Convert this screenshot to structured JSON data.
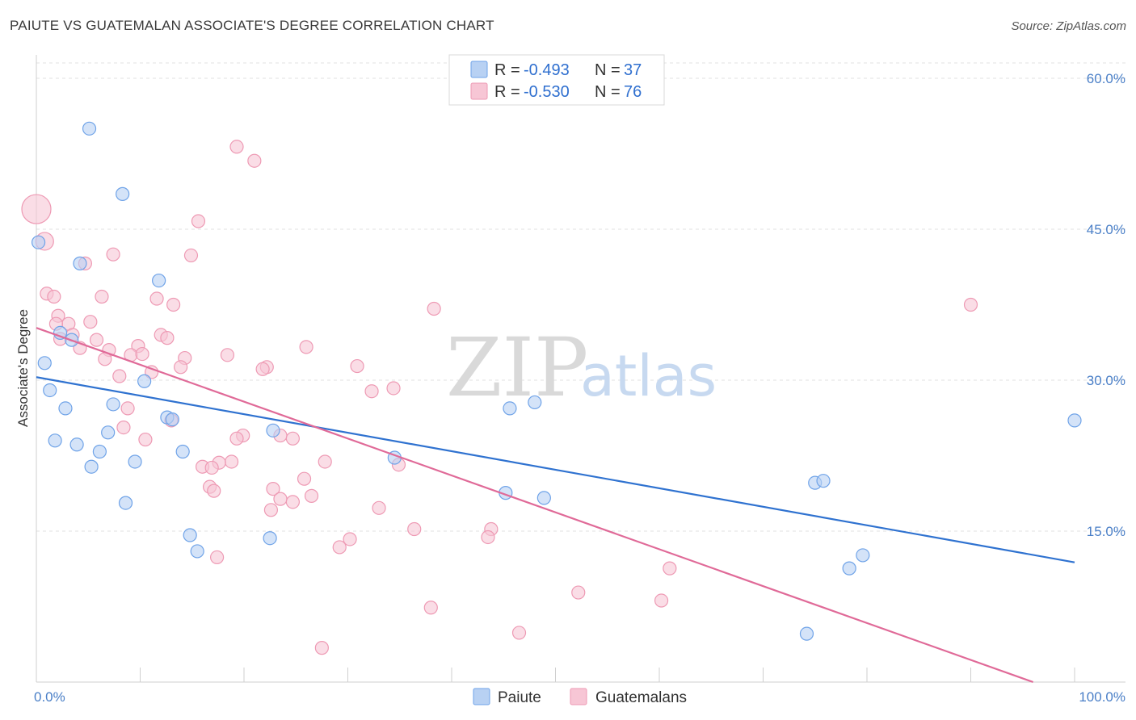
{
  "chart_data": {
    "type": "scatter",
    "title": "PAIUTE VS GUATEMALAN ASSOCIATE'S DEGREE CORRELATION CHART",
    "source": "Source: ZipAtlas.com",
    "xlabel": "",
    "ylabel": "Associate's Degree",
    "xlim": [
      0,
      100
    ],
    "ylim": [
      0,
      60
    ],
    "x_tick_labels": [
      "0.0%",
      "100.0%"
    ],
    "y_ticks": [
      15,
      30,
      45,
      60
    ],
    "y_tick_labels": [
      "15.0%",
      "30.0%",
      "45.0%",
      "60.0%"
    ],
    "grid": true,
    "legend_position": "top-center",
    "watermark": {
      "zip": "ZIP",
      "atlas": "atlas"
    },
    "series": [
      {
        "name": "Paiute",
        "color": "#6fa3e8",
        "fill": "#b8d1f3",
        "line_color": "#2f72d0",
        "r_label": "R =",
        "r_value": "-0.493",
        "n_label": "N =",
        "n_value": "37",
        "trend": [
          [
            0,
            30.3
          ],
          [
            100,
            11.9
          ]
        ],
        "points": [
          [
            5.1,
            55.0
          ],
          [
            8.3,
            48.5
          ],
          [
            0.2,
            43.7
          ],
          [
            4.2,
            41.6
          ],
          [
            11.8,
            39.9
          ],
          [
            2.3,
            34.7
          ],
          [
            3.4,
            34.0
          ],
          [
            0.8,
            31.7
          ],
          [
            1.3,
            29.0
          ],
          [
            10.4,
            29.9
          ],
          [
            2.8,
            27.2
          ],
          [
            7.4,
            27.6
          ],
          [
            12.6,
            26.3
          ],
          [
            6.9,
            24.8
          ],
          [
            13.1,
            26.1
          ],
          [
            22.8,
            25.0
          ],
          [
            45.6,
            27.2
          ],
          [
            48.0,
            27.8
          ],
          [
            1.8,
            24.0
          ],
          [
            3.9,
            23.6
          ],
          [
            6.1,
            22.9
          ],
          [
            14.1,
            22.9
          ],
          [
            9.5,
            21.9
          ],
          [
            5.3,
            21.4
          ],
          [
            34.5,
            22.3
          ],
          [
            8.6,
            17.8
          ],
          [
            45.2,
            18.8
          ],
          [
            48.9,
            18.3
          ],
          [
            75.0,
            19.8
          ],
          [
            75.8,
            20.0
          ],
          [
            100.0,
            26.0
          ],
          [
            14.8,
            14.6
          ],
          [
            22.5,
            14.3
          ],
          [
            15.5,
            13.0
          ],
          [
            78.3,
            11.3
          ],
          [
            79.6,
            12.6
          ],
          [
            74.2,
            4.8
          ]
        ],
        "sizes": {
          "default": 8
        }
      },
      {
        "name": "Guatemalans",
        "color": "#ee9ab4",
        "fill": "#f7c6d5",
        "line_color": "#e06a98",
        "r_label": "R =",
        "r_value": "-0.530",
        "n_label": "N =",
        "n_value": "76",
        "trend": [
          [
            0,
            35.2
          ],
          [
            96,
            0
          ]
        ],
        "points": [
          [
            0.0,
            47.0
          ],
          [
            0.8,
            43.8
          ],
          [
            19.3,
            53.2
          ],
          [
            21.0,
            51.8
          ],
          [
            15.6,
            45.8
          ],
          [
            7.4,
            42.5
          ],
          [
            14.9,
            42.4
          ],
          [
            4.7,
            41.6
          ],
          [
            1.0,
            38.6
          ],
          [
            1.7,
            38.3
          ],
          [
            6.3,
            38.3
          ],
          [
            11.6,
            38.1
          ],
          [
            13.2,
            37.5
          ],
          [
            38.3,
            37.1
          ],
          [
            90.0,
            37.5
          ],
          [
            2.1,
            36.4
          ],
          [
            3.1,
            35.6
          ],
          [
            5.2,
            35.8
          ],
          [
            1.9,
            35.6
          ],
          [
            3.5,
            34.5
          ],
          [
            2.3,
            34.1
          ],
          [
            5.8,
            34.0
          ],
          [
            12.0,
            34.5
          ],
          [
            12.6,
            34.2
          ],
          [
            9.8,
            33.4
          ],
          [
            4.2,
            33.2
          ],
          [
            7.0,
            33.0
          ],
          [
            26.0,
            33.3
          ],
          [
            9.1,
            32.5
          ],
          [
            10.2,
            32.6
          ],
          [
            18.4,
            32.5
          ],
          [
            14.3,
            32.2
          ],
          [
            6.6,
            32.1
          ],
          [
            30.9,
            31.4
          ],
          [
            22.2,
            31.3
          ],
          [
            13.9,
            31.3
          ],
          [
            21.8,
            31.1
          ],
          [
            11.1,
            30.8
          ],
          [
            8.0,
            30.4
          ],
          [
            32.3,
            28.9
          ],
          [
            34.4,
            29.2
          ],
          [
            8.8,
            27.2
          ],
          [
            13.0,
            26.0
          ],
          [
            8.4,
            25.3
          ],
          [
            23.5,
            24.5
          ],
          [
            19.9,
            24.5
          ],
          [
            10.5,
            24.1
          ],
          [
            19.3,
            24.2
          ],
          [
            24.7,
            24.2
          ],
          [
            16.0,
            21.4
          ],
          [
            18.8,
            21.9
          ],
          [
            17.6,
            21.8
          ],
          [
            16.9,
            21.3
          ],
          [
            27.8,
            21.9
          ],
          [
            34.9,
            21.6
          ],
          [
            25.8,
            20.2
          ],
          [
            22.8,
            19.2
          ],
          [
            16.7,
            19.4
          ],
          [
            17.1,
            19.0
          ],
          [
            23.5,
            18.2
          ],
          [
            26.5,
            18.5
          ],
          [
            24.7,
            17.9
          ],
          [
            22.6,
            17.1
          ],
          [
            33.0,
            17.3
          ],
          [
            36.4,
            15.2
          ],
          [
            43.8,
            15.2
          ],
          [
            43.5,
            14.4
          ],
          [
            30.2,
            14.2
          ],
          [
            29.2,
            13.4
          ],
          [
            17.4,
            12.4
          ],
          [
            61.0,
            11.3
          ],
          [
            52.2,
            8.9
          ],
          [
            60.2,
            8.1
          ],
          [
            38.0,
            7.4
          ],
          [
            46.5,
            4.9
          ],
          [
            27.5,
            3.4
          ]
        ],
        "sizes": {
          "default": 8
        }
      }
    ]
  }
}
